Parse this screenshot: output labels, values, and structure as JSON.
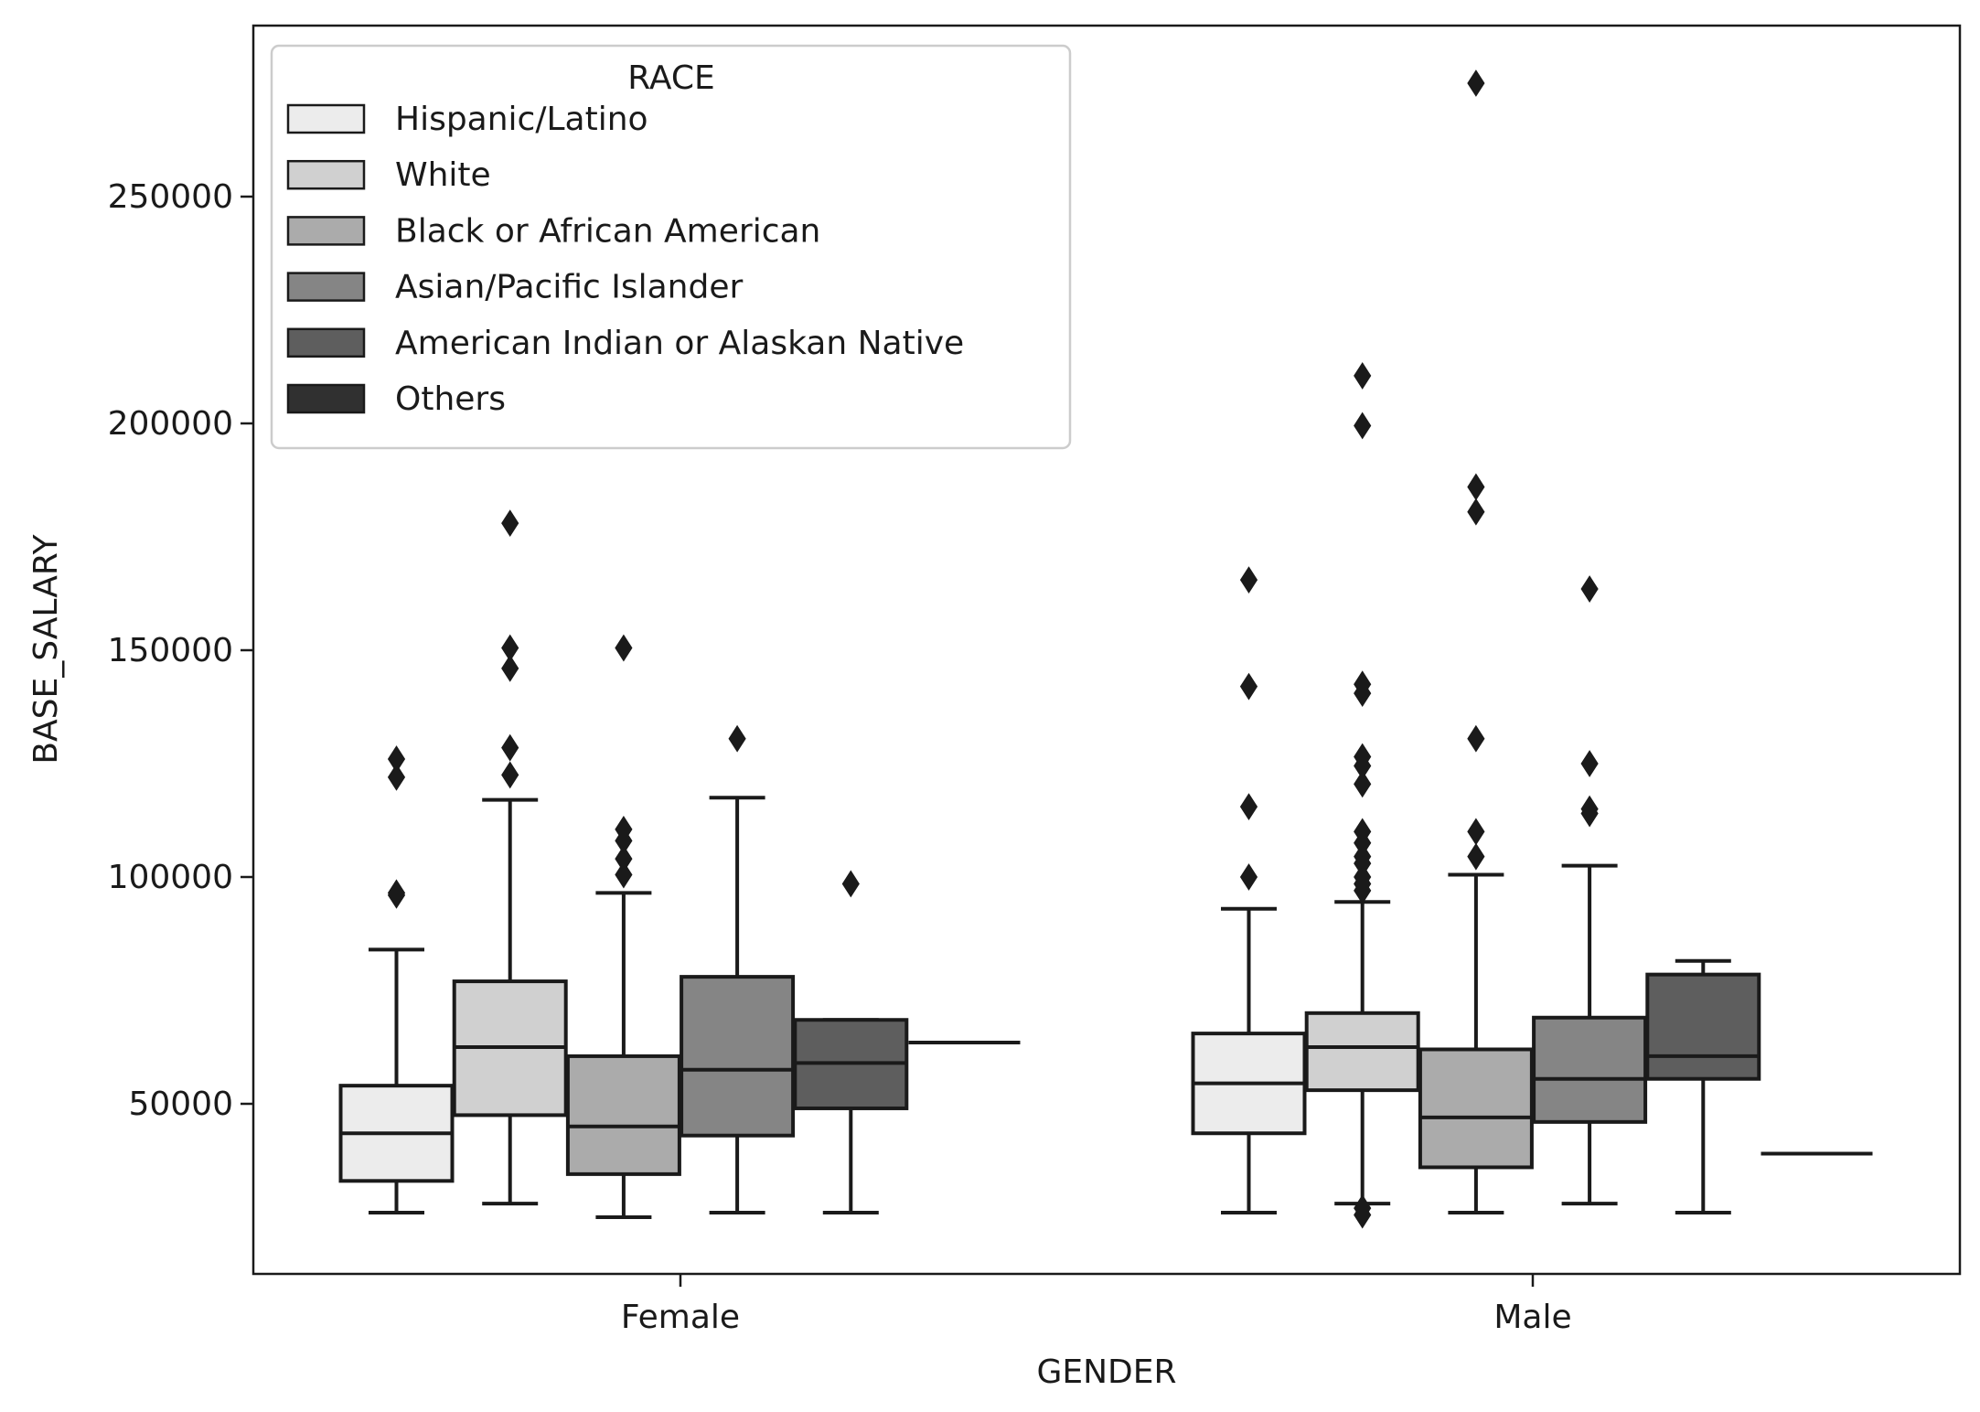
{
  "chart_data": {
    "type": "boxplot",
    "xlabel": "GENDER",
    "ylabel": "BASE_SALARY",
    "ylim": [
      0,
      290000
    ],
    "yticks": [
      50000,
      100000,
      150000,
      200000,
      250000
    ],
    "ytick_labels": [
      "50000",
      "100000",
      "150000",
      "200000",
      "250000"
    ],
    "categories": [
      "Female",
      "Male"
    ],
    "legend": {
      "title": "RACE",
      "placement": "upper-left",
      "entries": [
        {
          "label": "Hispanic/Latino",
          "color": "#ececec"
        },
        {
          "label": "White",
          "color": "#d0d0d0"
        },
        {
          "label": "Black or African American",
          "color": "#ababab"
        },
        {
          "label": "Asian/Pacific Islander",
          "color": "#858585"
        },
        {
          "label": "American Indian or Alaskan Native",
          "color": "#5e5e5e"
        },
        {
          "label": "Others",
          "color": "#303030"
        }
      ]
    },
    "groups": [
      {
        "category": "Female",
        "boxes": [
          {
            "race": "Hispanic/Latino",
            "whislo": 26000,
            "q1": 33000,
            "med": 43500,
            "q3": 54000,
            "whishi": 84000,
            "fliers": [
              96000,
              96500,
              122000,
              126000
            ]
          },
          {
            "race": "White",
            "whislo": 28000,
            "q1": 47500,
            "med": 62500,
            "q3": 77000,
            "whishi": 117000,
            "fliers": [
              122500,
              128500,
              146000,
              150500,
              178000
            ]
          },
          {
            "race": "Black or African American",
            "whislo": 25000,
            "q1": 34500,
            "med": 45000,
            "q3": 60500,
            "whishi": 96500,
            "fliers": [
              100500,
              104000,
              108000,
              110500,
              150500
            ]
          },
          {
            "race": "Asian/Pacific Islander",
            "whislo": 26000,
            "q1": 43000,
            "med": 57500,
            "q3": 78000,
            "whishi": 117500,
            "fliers": [
              130500
            ]
          },
          {
            "race": "American Indian or Alaskan Native",
            "whislo": 26000,
            "q1": 49000,
            "med": 59000,
            "q3": 68500,
            "whishi": 68500,
            "fliers": [
              98500
            ]
          },
          {
            "race": "Others",
            "whislo": 63500,
            "q1": 63500,
            "med": 63500,
            "q3": 63500,
            "whishi": 63500,
            "fliers": []
          }
        ]
      },
      {
        "category": "Male",
        "boxes": [
          {
            "race": "Hispanic/Latino",
            "whislo": 26000,
            "q1": 43500,
            "med": 54500,
            "q3": 65500,
            "whishi": 93000,
            "fliers": [
              100000,
              115500,
              142000,
              165500
            ]
          },
          {
            "race": "White",
            "whislo": 28000,
            "q1": 53000,
            "med": 62500,
            "q3": 70000,
            "whishi": 94500,
            "fliers": [
              25500,
              27000,
              97000,
              98500,
              100000,
              103000,
              104500,
              107500,
              110000,
              120500,
              124500,
              126500,
              140500,
              142500,
              199500,
              210500
            ]
          },
          {
            "race": "Black or African American",
            "whislo": 26000,
            "q1": 36000,
            "med": 47000,
            "q3": 62000,
            "whishi": 100500,
            "fliers": [
              104500,
              110000,
              130500,
              180500,
              186000,
              275000
            ]
          },
          {
            "race": "Asian/Pacific Islander",
            "whislo": 28000,
            "q1": 46000,
            "med": 55500,
            "q3": 69000,
            "whishi": 102500,
            "fliers": [
              114000,
              115000,
              125000,
              163500
            ]
          },
          {
            "race": "American Indian or Alaskan Native",
            "whislo": 26000,
            "q1": 55500,
            "med": 60500,
            "q3": 78500,
            "whishi": 81500,
            "fliers": []
          },
          {
            "race": "Others",
            "whislo": 39000,
            "q1": 39000,
            "med": 39000,
            "q3": 39000,
            "whishi": 39000,
            "fliers": []
          }
        ]
      }
    ]
  }
}
